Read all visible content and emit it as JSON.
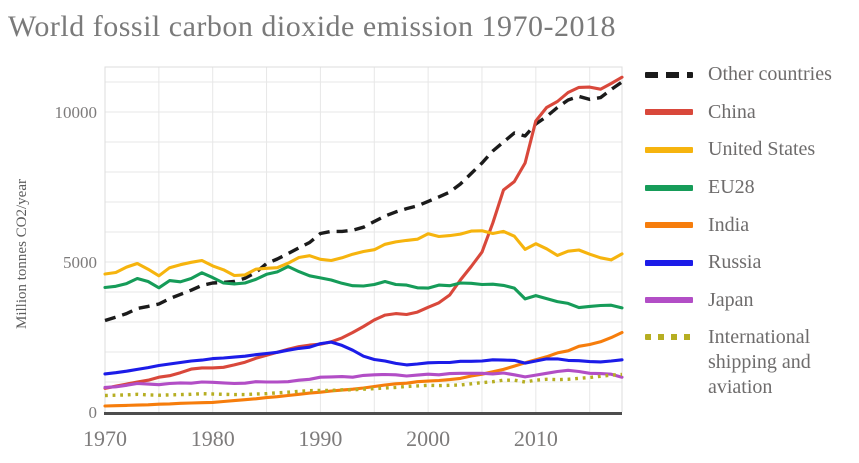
{
  "chart_data": {
    "type": "line",
    "title": "World fossil carbon dioxide emission 1970-2018",
    "ylabel": "Million tonnes CO2/year",
    "xlim": [
      1970,
      2018
    ],
    "ylim": [
      0,
      11500
    ],
    "x_ticks": [
      1970,
      1980,
      1990,
      2000,
      2010
    ],
    "y_ticks": [
      0,
      5000,
      10000
    ],
    "grid": {
      "x_minor_every_years": 5,
      "y_minor_every": 1000,
      "on": true
    },
    "legend_position": "right",
    "axis_color": "#4d4d4d",
    "gridline_color": "#e7e7e7",
    "frame_color": "#dddddd",
    "years_start": 1970,
    "years_step": 1,
    "series": [
      {
        "name": "Other countries",
        "color": "#1b1b1b",
        "style": "dashed",
        "values": [
          3050,
          3160,
          3280,
          3450,
          3520,
          3600,
          3780,
          3920,
          4060,
          4220,
          4300,
          4320,
          4350,
          4460,
          4650,
          4950,
          5100,
          5280,
          5470,
          5650,
          5950,
          6020,
          6020,
          6060,
          6160,
          6350,
          6530,
          6670,
          6780,
          6870,
          7020,
          7170,
          7330,
          7600,
          7950,
          8300,
          8700,
          9000,
          9300,
          9200,
          9600,
          9850,
          10150,
          10400,
          10520,
          10420,
          10480,
          10750,
          11000
        ]
      },
      {
        "name": "China",
        "color": "#d9483b",
        "style": "solid",
        "values": [
          790,
          860,
          930,
          1000,
          1060,
          1160,
          1210,
          1310,
          1430,
          1470,
          1470,
          1490,
          1570,
          1660,
          1790,
          1890,
          1990,
          2090,
          2180,
          2230,
          2260,
          2340,
          2470,
          2650,
          2850,
          3070,
          3230,
          3280,
          3250,
          3330,
          3490,
          3640,
          3900,
          4400,
          4850,
          5330,
          6300,
          7400,
          7680,
          8300,
          9700,
          10150,
          10350,
          10650,
          10820,
          10830,
          10760,
          10950,
          11160
        ]
      },
      {
        "name": "United States",
        "color": "#f6b40e",
        "style": "solid",
        "values": [
          4600,
          4650,
          4830,
          4950,
          4760,
          4540,
          4810,
          4910,
          4990,
          5050,
          4870,
          4740,
          4550,
          4570,
          4760,
          4790,
          4810,
          4960,
          5150,
          5210,
          5090,
          5050,
          5140,
          5260,
          5350,
          5410,
          5590,
          5670,
          5720,
          5760,
          5940,
          5850,
          5880,
          5930,
          6030,
          6040,
          5950,
          6020,
          5860,
          5420,
          5610,
          5440,
          5220,
          5360,
          5400,
          5260,
          5140,
          5070,
          5270
        ]
      },
      {
        "name": "EU28",
        "color": "#169c59",
        "style": "solid",
        "values": [
          4150,
          4190,
          4280,
          4450,
          4350,
          4140,
          4380,
          4340,
          4450,
          4640,
          4480,
          4300,
          4270,
          4300,
          4420,
          4590,
          4670,
          4850,
          4680,
          4540,
          4470,
          4400,
          4290,
          4210,
          4200,
          4250,
          4350,
          4250,
          4230,
          4140,
          4130,
          4230,
          4210,
          4300,
          4290,
          4250,
          4260,
          4220,
          4130,
          3770,
          3880,
          3780,
          3680,
          3620,
          3480,
          3520,
          3550,
          3560,
          3470
        ]
      },
      {
        "name": "India",
        "color": "#f67d0c",
        "style": "solid",
        "values": [
          200,
          210,
          220,
          230,
          240,
          260,
          270,
          290,
          300,
          310,
          320,
          350,
          380,
          410,
          440,
          480,
          510,
          550,
          590,
          630,
          660,
          700,
          730,
          760,
          800,
          850,
          900,
          940,
          960,
          1010,
          1030,
          1050,
          1080,
          1120,
          1200,
          1260,
          1340,
          1420,
          1530,
          1640,
          1740,
          1840,
          1970,
          2040,
          2190,
          2250,
          2340,
          2480,
          2650
        ]
      },
      {
        "name": "Russia",
        "color": "#1c1ce8",
        "style": "solid",
        "values": [
          1270,
          1310,
          1360,
          1420,
          1480,
          1550,
          1600,
          1650,
          1700,
          1730,
          1780,
          1800,
          1830,
          1860,
          1910,
          1950,
          1990,
          2060,
          2120,
          2160,
          2280,
          2330,
          2220,
          2060,
          1860,
          1750,
          1700,
          1620,
          1570,
          1600,
          1640,
          1650,
          1650,
          1690,
          1690,
          1700,
          1740,
          1730,
          1720,
          1630,
          1700,
          1770,
          1770,
          1720,
          1710,
          1680,
          1670,
          1700,
          1740
        ]
      },
      {
        "name": "Japan",
        "color": "#b24ec6",
        "style": "solid",
        "values": [
          820,
          840,
          890,
          950,
          930,
          910,
          950,
          970,
          960,
          1000,
          990,
          970,
          950,
          960,
          1010,
          1000,
          1000,
          1010,
          1060,
          1090,
          1160,
          1170,
          1180,
          1160,
          1220,
          1240,
          1250,
          1240,
          1200,
          1230,
          1260,
          1240,
          1280,
          1290,
          1290,
          1290,
          1270,
          1300,
          1240,
          1170,
          1230,
          1290,
          1350,
          1390,
          1350,
          1290,
          1280,
          1260,
          1160
        ]
      },
      {
        "name": "International shipping and aviation",
        "color": "#b6ae22",
        "style": "dotted",
        "values": [
          550,
          560,
          570,
          590,
          570,
          560,
          570,
          580,
          590,
          610,
          600,
          590,
          580,
          580,
          600,
          610,
          640,
          660,
          690,
          710,
          720,
          720,
          740,
          740,
          760,
          780,
          800,
          820,
          850,
          870,
          890,
          880,
          890,
          900,
          940,
          980,
          1010,
          1060,
          1060,
          1000,
          1060,
          1090,
          1080,
          1090,
          1120,
          1150,
          1190,
          1230,
          1250
        ]
      }
    ]
  }
}
